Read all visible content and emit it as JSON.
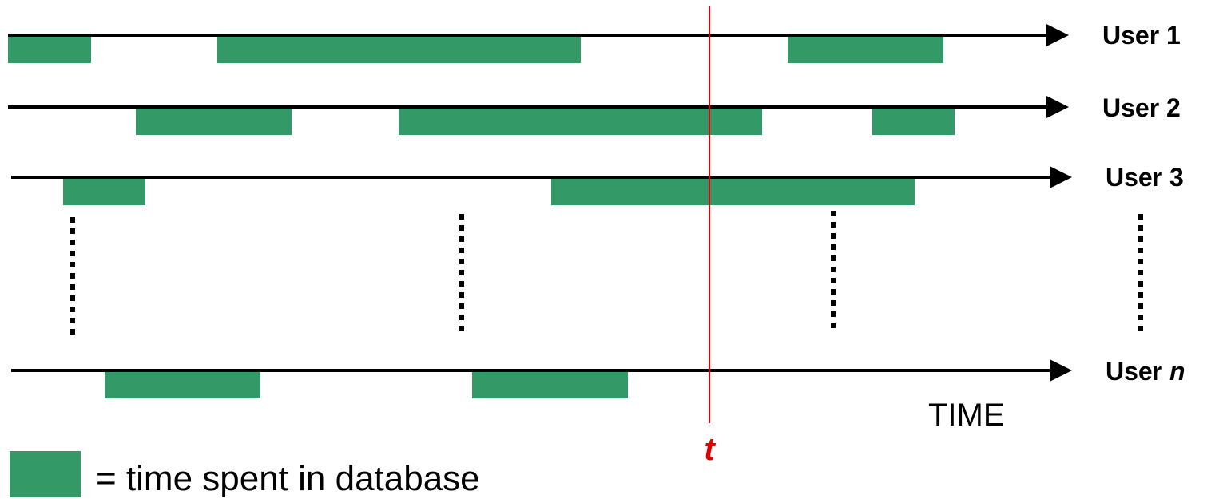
{
  "colors": {
    "db_bar": "#339966",
    "marker": "#e00000",
    "axis": "#000000"
  },
  "users": [
    {
      "label": "User 1",
      "label_var": "",
      "intervals": [
        [
          0,
          104
        ],
        [
          262,
          717
        ],
        [
          976,
          1171
        ]
      ]
    },
    {
      "label": "User 2",
      "label_var": "",
      "intervals": [
        [
          160,
          355
        ],
        [
          489,
          944
        ],
        [
          1082,
          1185
        ]
      ]
    },
    {
      "label": "User 3",
      "label_var": "",
      "intervals": [
        [
          69,
          172
        ],
        [
          680,
          1135
        ]
      ]
    },
    {
      "label": "User ",
      "label_var": "n",
      "intervals": [
        [
          121,
          316
        ],
        [
          581,
          776
        ]
      ]
    }
  ],
  "ellipsis_marker": "vertical-dots",
  "marker": {
    "label": "t",
    "time": 878
  },
  "time_axis_label": "TIME",
  "legend": {
    "label": "= time spent in database"
  }
}
